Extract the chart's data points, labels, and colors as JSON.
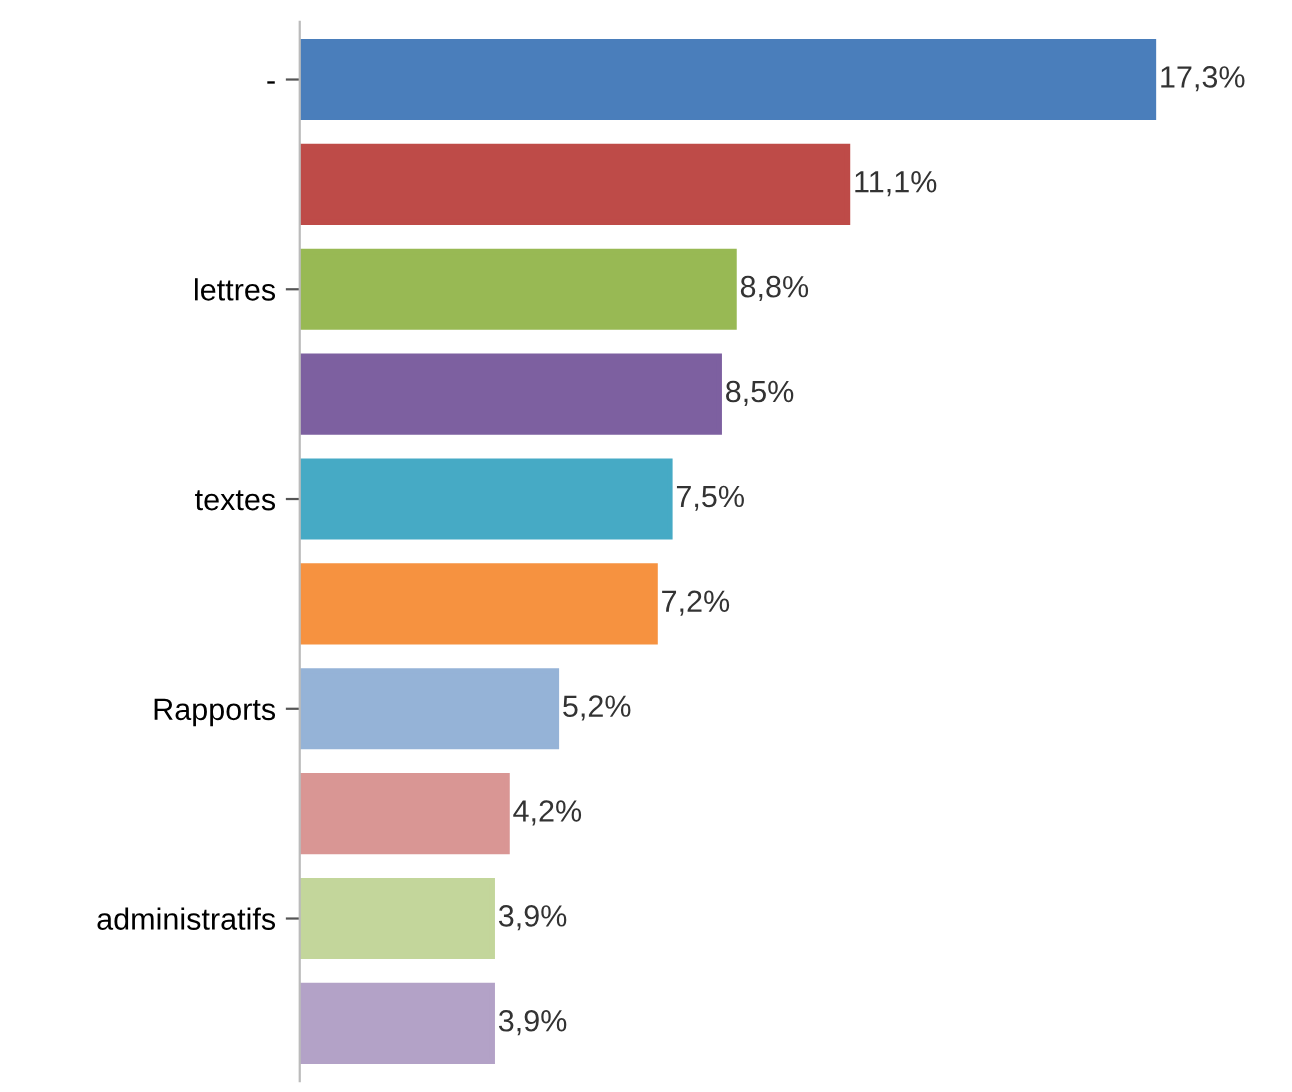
{
  "chart_data": {
    "type": "bar",
    "orientation": "horizontal",
    "categories": [
      "-",
      null,
      "lettres",
      null,
      "textes",
      null,
      "Rapports",
      null,
      "administratifs",
      null
    ],
    "values": [
      17.3,
      11.1,
      8.8,
      8.5,
      7.5,
      7.2,
      5.2,
      4.2,
      3.9,
      3.9
    ],
    "value_labels": [
      "17,3%",
      "11,1%",
      "8,8%",
      "8,5%",
      "7,5%",
      "7,2%",
      "5,2%",
      "4,2%",
      "3,9%",
      "3,9%"
    ],
    "colors": [
      "#4a7ebb",
      "#be4b48",
      "#98b954",
      "#7d60a0",
      "#46aac5",
      "#f69240",
      "#95b3d7",
      "#d99694",
      "#c3d69b",
      "#b3a2c7"
    ],
    "grid": false,
    "legend": false
  }
}
